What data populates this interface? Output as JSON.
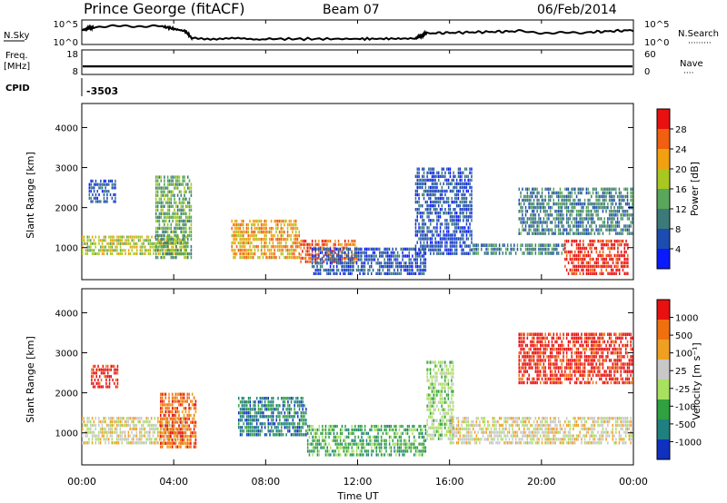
{
  "header": {
    "station": "Prince George (fitACF)",
    "beam": "Beam 07",
    "date": "06/Feb/2014"
  },
  "top_panels": {
    "nsky": {
      "left_label": "N.Sky",
      "left_ticks": [
        "10^5",
        "10^0"
      ],
      "right_label": "N.Search",
      "right_ticks": [
        "10^5",
        "10^0"
      ],
      "right_legend": "·········"
    },
    "freq": {
      "left_label_1": "Freq.",
      "left_label_2": "[MHz]",
      "left_ticks": [
        "18",
        "8"
      ],
      "right_label": "Nave",
      "right_ticks": [
        "60",
        "0"
      ],
      "right_legend": "····"
    },
    "cpid": {
      "label": "CPID",
      "value": "-3503"
    }
  },
  "x_axis": {
    "ticks": [
      "00:00",
      "04:00",
      "08:00",
      "12:00",
      "16:00",
      "20:00",
      "00:00"
    ],
    "label": "Time UT"
  },
  "chart_data": [
    {
      "type": "line",
      "panel": "N.Sky / N.Search",
      "x_unit": "hours UT",
      "x": [
        0,
        0.5,
        2,
        3.5,
        4.5,
        4.8,
        8,
        12,
        14.5,
        15,
        17,
        19,
        20.5,
        22,
        24
      ],
      "y_fraction_of_log_range": [
        0.6,
        0.75,
        0.8,
        0.78,
        0.55,
        0.2,
        0.18,
        0.18,
        0.2,
        0.45,
        0.5,
        0.55,
        0.45,
        0.5,
        0.6
      ],
      "ylim_left": [
        "10^0",
        "10^5"
      ]
    },
    {
      "type": "bar",
      "panel": "Freq. / Nave",
      "x_range": [
        0,
        24
      ],
      "freq_band_mhz": [
        10.5,
        11.5
      ],
      "ylim_mhz": [
        8,
        18
      ],
      "ylim_nave": [
        0,
        60
      ]
    },
    {
      "type": "heatmap",
      "panel": "Power",
      "ylabel": "Slant Range [km]",
      "yticks": [
        "1000",
        "2000",
        "3000",
        "4000"
      ],
      "ylim": [
        200,
        4600
      ],
      "xlim_hours": [
        0,
        24
      ],
      "colorbar": {
        "label": "Power [dB]",
        "ticks": [
          "4",
          "8",
          "12",
          "16",
          "20",
          "24",
          "28"
        ],
        "colors": [
          "#0a1aff",
          "#1d4cb0",
          "#3c7a7a",
          "#5aa65a",
          "#a8c820",
          "#f0a010",
          "#f06010",
          "#e81010"
        ]
      },
      "regions": [
        {
          "x": [
            0,
            4.6
          ],
          "y": [
            800,
            1300
          ],
          "level": 4
        },
        {
          "x": [
            0.3,
            1.5
          ],
          "y": [
            2100,
            2700
          ],
          "level": 1
        },
        {
          "x": [
            3.2,
            4.8
          ],
          "y": [
            700,
            2800
          ],
          "level": 3
        },
        {
          "x": [
            6.5,
            9.5
          ],
          "y": [
            700,
            1700
          ],
          "level": 5
        },
        {
          "x": [
            9.5,
            12
          ],
          "y": [
            600,
            1200
          ],
          "level": 6
        },
        {
          "x": [
            10,
            15
          ],
          "y": [
            300,
            1000
          ],
          "level": 1
        },
        {
          "x": [
            14.5,
            17
          ],
          "y": [
            800,
            3000
          ],
          "level": 1
        },
        {
          "x": [
            17,
            21
          ],
          "y": [
            800,
            1100
          ],
          "level": 2
        },
        {
          "x": [
            21,
            23.8
          ],
          "y": [
            300,
            1200
          ],
          "level": 7
        },
        {
          "x": [
            19,
            24
          ],
          "y": [
            1300,
            2500
          ],
          "level": 2
        }
      ]
    },
    {
      "type": "heatmap",
      "panel": "Velocity",
      "ylabel": "Slant Range [km]",
      "yticks": [
        "1000",
        "2000",
        "3000",
        "4000"
      ],
      "ylim": [
        200,
        4600
      ],
      "xlim_hours": [
        0,
        24
      ],
      "colorbar": {
        "label": "Velocity [m s⁻¹]",
        "ticks": [
          "1000",
          "500",
          "100",
          "25",
          "-25",
          "-100",
          "-500",
          "-1000"
        ],
        "colors": [
          "#1030c0",
          "#208080",
          "#30a040",
          "#a8e060",
          "#c8c8c8",
          "#f0a020",
          "#f07010",
          "#e81010"
        ]
      },
      "regions": [
        {
          "x": [
            0,
            4.5
          ],
          "y": [
            700,
            1400
          ],
          "level": 4
        },
        {
          "x": [
            0.4,
            1.6
          ],
          "y": [
            2100,
            2700
          ],
          "level": 7
        },
        {
          "x": [
            3.4,
            5
          ],
          "y": [
            600,
            2000
          ],
          "level": 6
        },
        {
          "x": [
            6.8,
            9.8
          ],
          "y": [
            900,
            1900
          ],
          "level": 1
        },
        {
          "x": [
            9.8,
            15
          ],
          "y": [
            400,
            1200
          ],
          "level": 2
        },
        {
          "x": [
            15,
            16.2
          ],
          "y": [
            800,
            2800
          ],
          "level": 3
        },
        {
          "x": [
            16,
            24
          ],
          "y": [
            700,
            1400
          ],
          "level": 4
        },
        {
          "x": [
            19,
            24
          ],
          "y": [
            2200,
            3500
          ],
          "level": 7
        }
      ]
    }
  ]
}
